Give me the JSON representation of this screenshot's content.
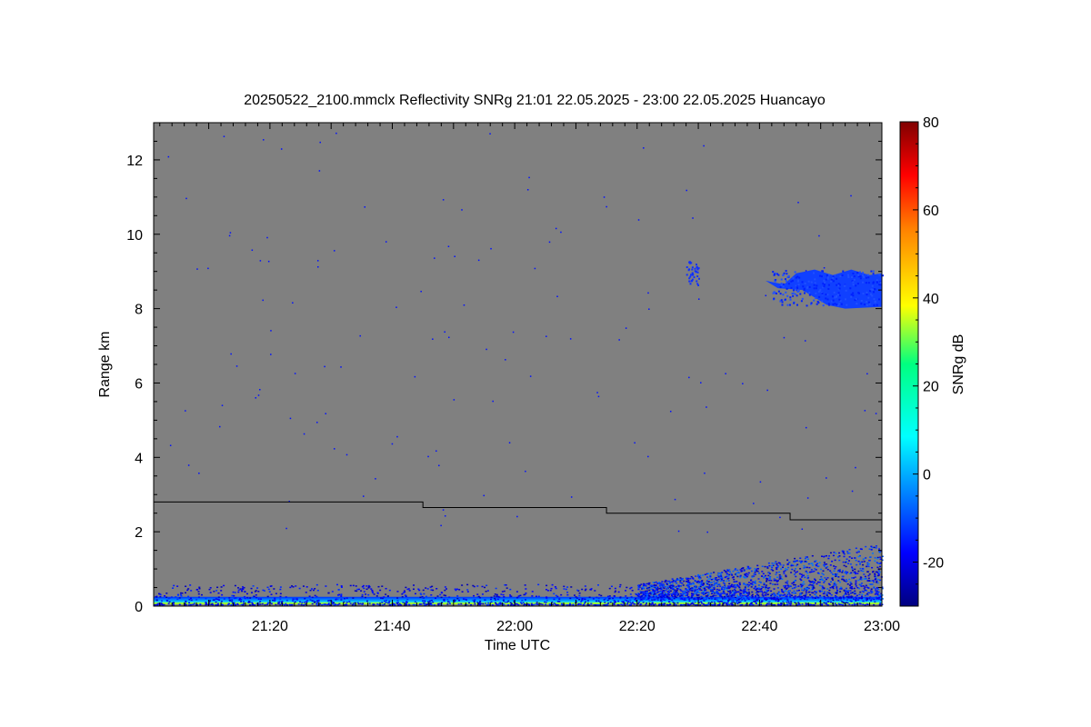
{
  "chart_data": {
    "type": "heatmap",
    "title": "20250522_2100.mmclx Reflectivity SNRg   21:01 22.05.2025 - 23:00 22.05.2025 Huancayo",
    "xlabel": "Time UTC",
    "ylabel": "Range km",
    "colorbar_label": "SNRg dB",
    "x_range_minutes": [
      1261,
      1380
    ],
    "x_ticks": [
      {
        "minutes": 1280,
        "label": "21:20"
      },
      {
        "minutes": 1300,
        "label": "21:40"
      },
      {
        "minutes": 1320,
        "label": "22:00"
      },
      {
        "minutes": 1340,
        "label": "22:20"
      },
      {
        "minutes": 1360,
        "label": "22:40"
      },
      {
        "minutes": 1380,
        "label": "23:00"
      }
    ],
    "y_range_km": [
      0,
      13
    ],
    "y_ticks": [
      0,
      2,
      4,
      6,
      8,
      10,
      12
    ],
    "colorbar_range_db": [
      -30,
      80
    ],
    "colorbar_ticks": [
      -20,
      0,
      20,
      40,
      60,
      80
    ],
    "background_color": "#808080",
    "colormap": "jet",
    "threshold_line_km": [
      {
        "start_minutes": 1261,
        "end_minutes": 1305,
        "range_km": 2.8
      },
      {
        "start_minutes": 1305,
        "end_minutes": 1335,
        "range_km": 2.65
      },
      {
        "start_minutes": 1335,
        "end_minutes": 1365,
        "range_km": 2.5
      },
      {
        "start_minutes": 1365,
        "end_minutes": 1380,
        "range_km": 2.32
      }
    ],
    "echo_regions": [
      {
        "feature": "surface clutter",
        "start_minutes": 1261,
        "end_minutes": 1380,
        "range_km": [
          0.05,
          0.6
        ],
        "snr_db": [
          -25,
          15
        ]
      },
      {
        "feature": "boundary layer echoes",
        "start_minutes": 1340,
        "end_minutes": 1380,
        "range_km": [
          0.2,
          1.6
        ],
        "snr_db": [
          -25,
          0
        ]
      },
      {
        "feature": "cloud layer",
        "start_minutes": 1361,
        "end_minutes": 1380,
        "range_km": [
          8.0,
          9.1
        ],
        "snr_db": [
          -25,
          -15
        ]
      },
      {
        "feature": "small echo",
        "start_minutes": 1348,
        "end_minutes": 1350,
        "range_km": [
          8.6,
          9.3
        ],
        "snr_db": [
          -25,
          -15
        ]
      }
    ]
  }
}
